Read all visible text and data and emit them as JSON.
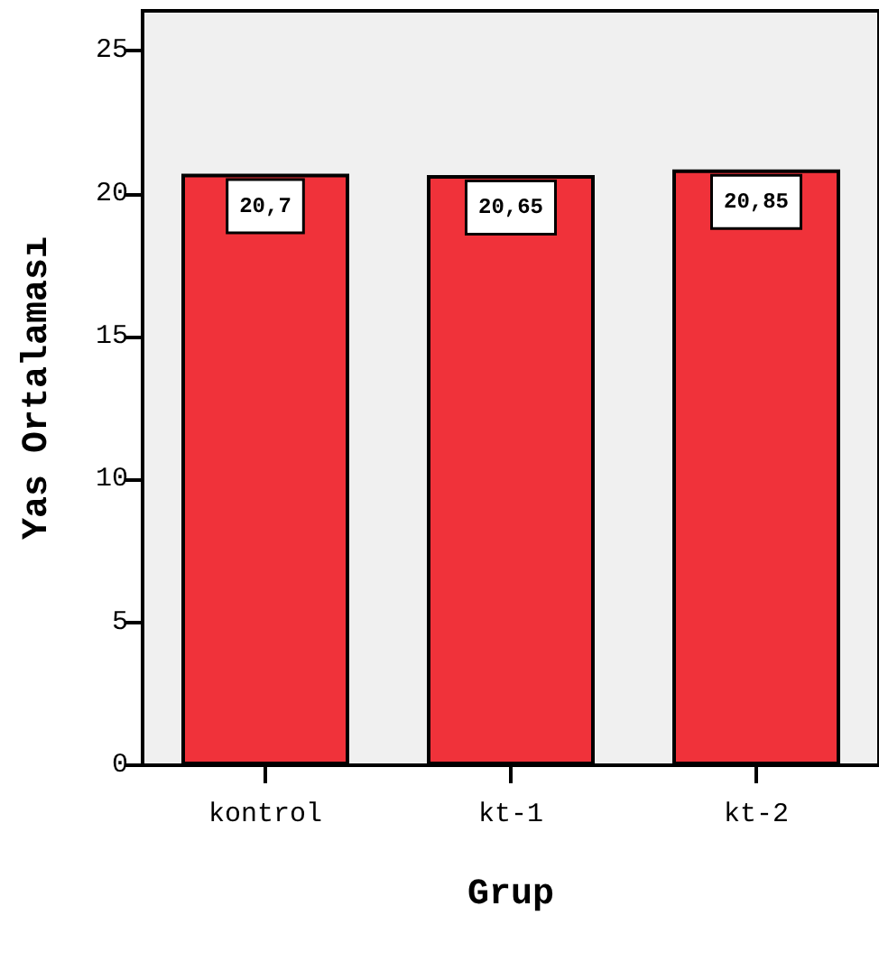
{
  "chart_data": {
    "type": "bar",
    "xlabel": "Grup",
    "ylabel": "Yas Ortalaması",
    "categories": [
      "kontrol",
      "kt-1",
      "kt-2"
    ],
    "values": [
      20.7,
      20.65,
      20.85
    ],
    "value_labels": [
      "20,7",
      "20,65",
      "20,85"
    ],
    "color": "#f0323a",
    "ylim": [
      0,
      26.4
    ],
    "yticks": [
      0,
      5,
      10,
      15,
      20,
      25
    ],
    "grid": false
  }
}
